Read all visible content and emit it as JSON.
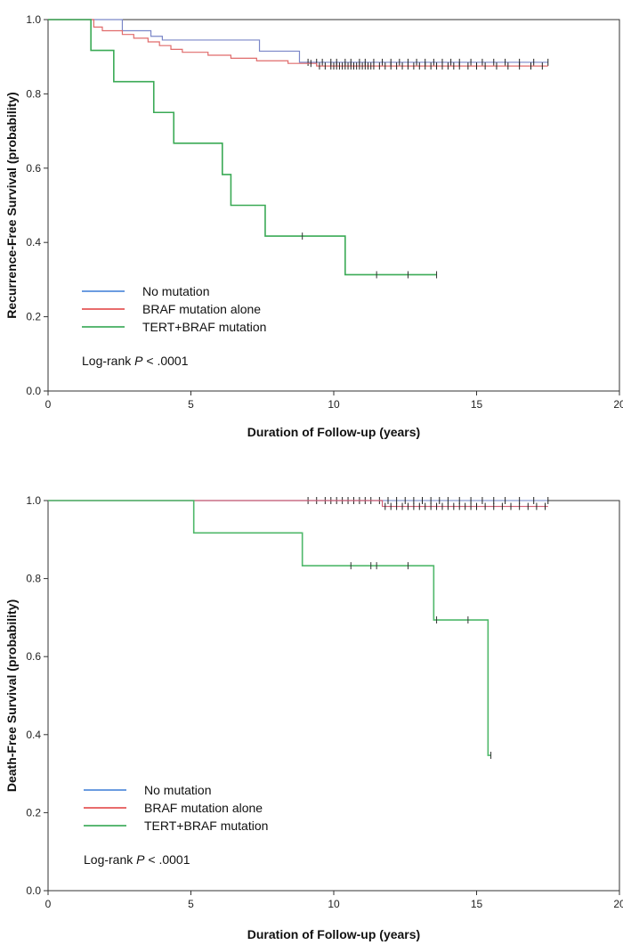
{
  "chart_data": [
    {
      "type": "line",
      "subtype": "kaplan-meier",
      "title": "",
      "xlabel": "Duration of Follow-up (years)",
      "ylabel": "Recurrence-Free Survival (probability)",
      "xlim": [
        0,
        20
      ],
      "ylim": [
        0,
        1.0
      ],
      "x_ticks": [
        0,
        5,
        10,
        15,
        20
      ],
      "y_ticks": [
        0.0,
        0.2,
        0.4,
        0.6,
        0.8,
        1.0
      ],
      "legend_placement": "bottom-left",
      "annotation": {
        "prefix": "Log-rank",
        "p_symbol": "P",
        "suffix": "< .0001"
      },
      "series": [
        {
          "name": "No mutation",
          "color": "#7a86c8",
          "legend_color": "#3a7bd5",
          "steps": [
            [
              0,
              1.0
            ],
            [
              2.6,
              0.97
            ],
            [
              3.6,
              0.955
            ],
            [
              4.0,
              0.945
            ],
            [
              7.4,
              0.915
            ],
            [
              8.8,
              0.885
            ],
            [
              17.5,
              0.885
            ]
          ],
          "censor_x": [
            9.1,
            9.4,
            9.6,
            9.9,
            10.1,
            10.4,
            10.6,
            10.9,
            11.1,
            11.4,
            11.7,
            12.0,
            12.3,
            12.6,
            12.9,
            13.2,
            13.5,
            13.8,
            14.1,
            14.4,
            14.8,
            15.2,
            15.6,
            16.0,
            16.5,
            17.0,
            17.5
          ]
        },
        {
          "name": "BRAF mutation alone",
          "color": "#e06b6b",
          "legend_color": "#e03c3c",
          "steps": [
            [
              0,
              1.0
            ],
            [
              1.6,
              0.98
            ],
            [
              1.9,
              0.97
            ],
            [
              2.6,
              0.96
            ],
            [
              3.0,
              0.95
            ],
            [
              3.5,
              0.94
            ],
            [
              3.9,
              0.93
            ],
            [
              4.3,
              0.92
            ],
            [
              4.7,
              0.912
            ],
            [
              5.6,
              0.904
            ],
            [
              6.4,
              0.896
            ],
            [
              7.3,
              0.889
            ],
            [
              8.4,
              0.882
            ],
            [
              9.4,
              0.875
            ],
            [
              17.5,
              0.875
            ]
          ],
          "censor_x": [
            9.2,
            9.5,
            9.7,
            9.9,
            10.0,
            10.1,
            10.2,
            10.3,
            10.4,
            10.5,
            10.6,
            10.7,
            10.8,
            10.9,
            11.0,
            11.1,
            11.2,
            11.3,
            11.4,
            11.6,
            11.8,
            12.0,
            12.2,
            12.4,
            12.6,
            12.8,
            13.0,
            13.2,
            13.4,
            13.6,
            13.8,
            14.0,
            14.2,
            14.4,
            14.7,
            15.0,
            15.3,
            15.7,
            16.1,
            16.5,
            16.9,
            17.3
          ]
        },
        {
          "name": "TERT+BRAF mutation",
          "color": "#3aaa55",
          "legend_color": "#25a046",
          "steps": [
            [
              0,
              1.0
            ],
            [
              1.5,
              0.917
            ],
            [
              2.3,
              0.833
            ],
            [
              3.7,
              0.75
            ],
            [
              4.4,
              0.667
            ],
            [
              6.1,
              0.583
            ],
            [
              6.4,
              0.5
            ],
            [
              7.6,
              0.417
            ],
            [
              10.4,
              0.313
            ],
            [
              13.6,
              0.313
            ]
          ],
          "censor_x": [
            8.9,
            11.5,
            12.6,
            13.6
          ]
        }
      ]
    },
    {
      "type": "line",
      "subtype": "kaplan-meier",
      "title": "",
      "xlabel": "Duration of Follow-up (years)",
      "ylabel": "Death-Free Survival (probability)",
      "xlim": [
        0,
        20
      ],
      "ylim": [
        0,
        1.0
      ],
      "x_ticks": [
        0,
        5,
        10,
        15,
        20
      ],
      "y_ticks": [
        0.0,
        0.2,
        0.4,
        0.6,
        0.8,
        1.0
      ],
      "legend_placement": "bottom-left",
      "annotation": {
        "prefix": "Log-rank",
        "p_symbol": "P",
        "suffix": "< .0001"
      },
      "series": [
        {
          "name": "No mutation",
          "color": "#8a9ad0",
          "legend_color": "#3a7bd5",
          "steps": [
            [
              0,
              1.0
            ],
            [
              17.5,
              1.0
            ]
          ],
          "censor_x": [
            9.1,
            9.4,
            9.7,
            9.9,
            10.1,
            10.3,
            10.5,
            10.7,
            10.9,
            11.1,
            11.3,
            11.6,
            11.9,
            12.2,
            12.5,
            12.8,
            13.1,
            13.4,
            13.7,
            14.0,
            14.4,
            14.8,
            15.2,
            15.6,
            16.0,
            16.5,
            17.0,
            17.5
          ]
        },
        {
          "name": "BRAF mutation alone",
          "color": "#cf5f75",
          "legend_color": "#e03c3c",
          "steps": [
            [
              0,
              1.0
            ],
            [
              11.7,
              1.0
            ],
            [
              11.7,
              0.985
            ],
            [
              17.5,
              0.985
            ]
          ],
          "censor_x": [
            11.8,
            12.0,
            12.2,
            12.4,
            12.6,
            12.8,
            13.0,
            13.2,
            13.4,
            13.6,
            13.8,
            14.0,
            14.2,
            14.4,
            14.6,
            14.8,
            15.0,
            15.3,
            15.6,
            15.9,
            16.2,
            16.5,
            16.8,
            17.1,
            17.4
          ]
        },
        {
          "name": "TERT+BRAF mutation",
          "color": "#4fb86a",
          "legend_color": "#25a046",
          "steps": [
            [
              0,
              1.0
            ],
            [
              5.1,
              0.917
            ],
            [
              8.9,
              0.833
            ],
            [
              13.5,
              0.694
            ],
            [
              15.4,
              0.347
            ],
            [
              15.5,
              0.347
            ]
          ],
          "censor_x": [
            10.6,
            11.3,
            11.5,
            12.6,
            13.6,
            14.7,
            15.5
          ]
        }
      ]
    }
  ]
}
